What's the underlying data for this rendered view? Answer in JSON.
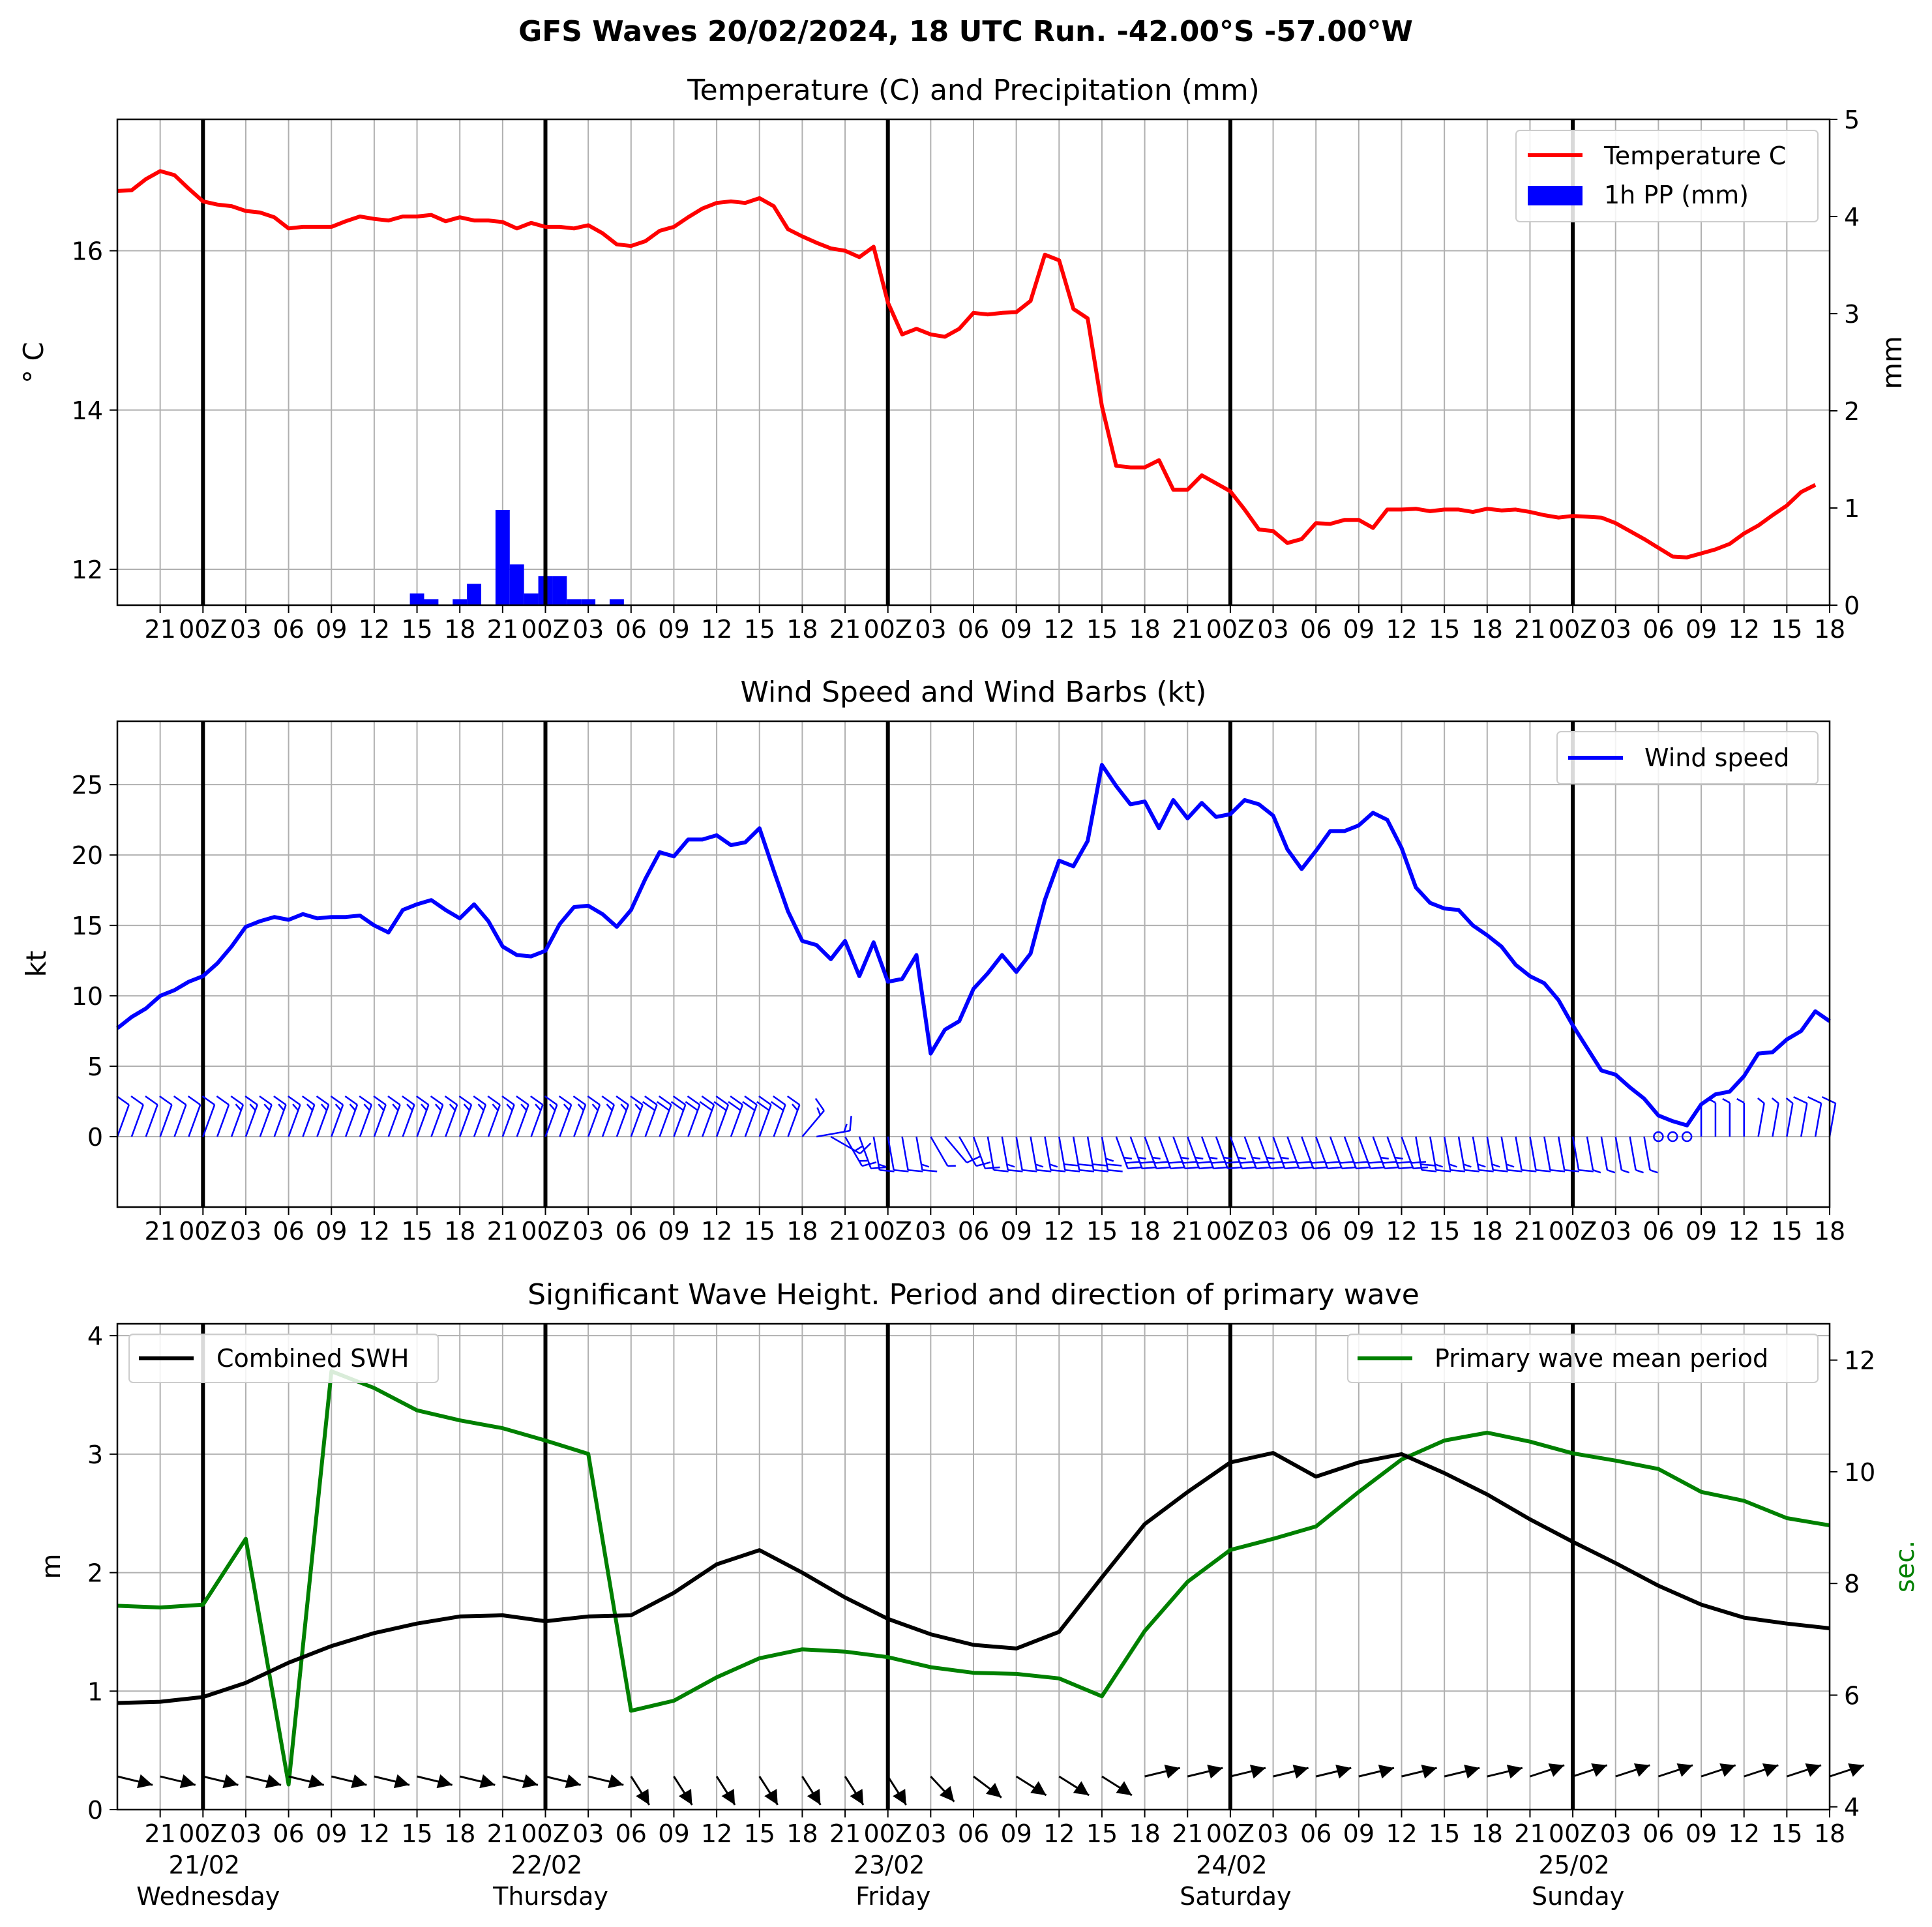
{
  "suptitle": "GFS Waves 20/02/2024, 18 UTC Run. -42.00°S -57.00°W",
  "colors": {
    "temperature": "#ff0000",
    "precip": "#0000ff",
    "wind": "#0000ff",
    "swh": "#000000",
    "period": "#008000",
    "grid": "#b0b0b0"
  },
  "xaxis": {
    "start": "2024-02-20T18:00Z",
    "end": "2024-02-25T18:00Z",
    "step_hours": 3,
    "tick_labels": [
      "21",
      "00Z",
      "03",
      "06",
      "09",
      "12",
      "15",
      "18",
      "21",
      "00Z",
      "03",
      "06",
      "09",
      "12",
      "15",
      "18",
      "21",
      "00Z",
      "03",
      "06",
      "09",
      "12",
      "15",
      "18",
      "21",
      "00Z",
      "03",
      "06",
      "09",
      "12",
      "15",
      "18",
      "21",
      "00Z",
      "03",
      "06",
      "09",
      "12",
      "15",
      "18"
    ],
    "day_dates": [
      "21/02",
      "22/02",
      "23/02",
      "24/02",
      "25/02"
    ],
    "day_names": [
      "Wednesday",
      "Thursday",
      "Friday",
      "Saturday",
      "Sunday"
    ]
  },
  "chart_data": [
    {
      "type": "line",
      "title": "Temperature (C) and Precipitation (mm)",
      "ylabel": "° C",
      "ylabel_right": "mm",
      "ylim": [
        11.55,
        17.65
      ],
      "ylim_right": [
        0,
        5
      ],
      "yticks": [
        12,
        14,
        16
      ],
      "yticks_right": [
        0,
        1,
        2,
        3,
        4,
        5
      ],
      "grid": true,
      "legend_position": "top-right",
      "series": [
        {
          "name": "Temperature C",
          "x_hours_step": 1,
          "values": [
            16.75,
            16.76,
            16.9,
            17.0,
            16.95,
            16.78,
            16.62,
            16.58,
            16.56,
            16.5,
            16.48,
            16.42,
            16.28,
            16.3,
            16.3,
            16.3,
            16.37,
            16.43,
            16.4,
            16.38,
            16.43,
            16.43,
            16.45,
            16.37,
            16.42,
            16.38,
            16.38,
            16.36,
            16.28,
            16.35,
            16.3,
            16.3,
            16.28,
            16.32,
            16.22,
            16.08,
            16.06,
            16.12,
            16.25,
            16.3,
            16.42,
            16.53,
            16.6,
            16.62,
            16.6,
            16.66,
            16.56,
            16.27,
            16.18,
            16.1,
            16.03,
            16.0,
            15.92,
            16.05,
            15.35,
            14.95,
            15.02,
            14.95,
            14.92,
            15.02,
            15.22,
            15.2,
            15.22,
            15.23,
            15.37,
            15.95,
            15.88,
            15.27,
            15.15,
            14.05,
            13.3,
            13.28,
            13.28,
            13.37,
            13.0,
            13.0,
            13.18,
            13.08,
            12.98,
            12.75,
            12.5,
            12.48,
            12.33,
            12.38,
            12.58,
            12.57,
            12.62,
            12.62,
            12.52,
            12.75,
            12.75,
            12.76,
            12.73,
            12.75,
            12.75,
            12.72,
            12.76,
            12.74,
            12.75,
            12.72,
            12.68,
            12.65,
            12.67,
            12.66,
            12.65,
            12.58,
            12.48,
            12.38,
            12.27,
            12.16,
            12.15,
            12.2,
            12.25,
            12.32,
            12.45,
            12.55,
            12.68,
            12.8,
            12.97,
            13.06
          ]
        },
        {
          "name": "1h PP (mm)",
          "type": "bar",
          "x_hours": [
            21,
            22,
            24,
            25,
            27,
            28,
            29,
            30,
            31,
            32,
            33,
            35
          ],
          "values": [
            0.12,
            0.06,
            0.06,
            0.22,
            0.98,
            0.42,
            0.12,
            0.3,
            0.3,
            0.06,
            0.06,
            0.06
          ]
        }
      ]
    },
    {
      "type": "line",
      "title": "Wind Speed and Wind Barbs (kt)",
      "ylabel": "kt",
      "ylim": [
        -5,
        29.5
      ],
      "yticks": [
        0,
        5,
        10,
        15,
        20,
        25
      ],
      "grid": true,
      "legend_position": "top-right",
      "series": [
        {
          "name": "Wind speed",
          "x_hours_step": 1,
          "values": [
            7.7,
            8.5,
            9.1,
            10.0,
            10.4,
            11.0,
            11.4,
            12.3,
            13.5,
            14.9,
            15.3,
            15.6,
            15.4,
            15.8,
            15.5,
            15.6,
            15.6,
            15.7,
            15.0,
            14.5,
            16.1,
            16.5,
            16.8,
            16.1,
            15.5,
            16.5,
            15.3,
            13.5,
            12.9,
            12.8,
            13.2,
            15.1,
            16.3,
            16.4,
            15.8,
            14.9,
            16.1,
            18.3,
            20.2,
            19.9,
            21.1,
            21.1,
            21.4,
            20.7,
            20.9,
            21.9,
            18.9,
            16.0,
            13.9,
            13.6,
            12.6,
            13.9,
            11.4,
            13.8,
            11.0,
            11.2,
            12.9,
            5.9,
            7.6,
            8.2,
            10.5,
            11.6,
            12.9,
            11.7,
            13.0,
            16.8,
            19.6,
            19.2,
            21.0,
            26.4,
            24.9,
            23.6,
            23.8,
            21.9,
            23.9,
            22.6,
            23.7,
            22.7,
            22.9,
            23.9,
            23.6,
            22.8,
            20.4,
            19.0,
            20.3,
            21.7,
            21.7,
            22.1,
            23.0,
            22.5,
            20.5,
            17.7,
            16.6,
            16.2,
            16.1,
            15.0,
            14.3,
            13.5,
            12.2,
            11.4,
            10.9,
            9.7,
            7.9,
            6.3,
            4.7,
            4.4,
            3.5,
            2.7,
            1.5,
            1.1,
            0.8,
            2.3,
            3.0,
            3.2,
            4.3,
            5.9,
            6.0,
            6.9,
            7.5,
            8.9,
            8.2
          ]
        }
      ],
      "barbs": {
        "x_hours_step": 1,
        "direction_from_deg": [
          20,
          20,
          20,
          20,
          20,
          20,
          20,
          20,
          20,
          20,
          20,
          20,
          20,
          20,
          20,
          20,
          20,
          20,
          20,
          20,
          20,
          20,
          20,
          20,
          20,
          20,
          20,
          20,
          20,
          20,
          20,
          20,
          20,
          20,
          20,
          20,
          20,
          20,
          20,
          20,
          20,
          20,
          20,
          20,
          20,
          20,
          20,
          20,
          40,
          80,
          120,
          150,
          160,
          170,
          170,
          170,
          170,
          150,
          140,
          150,
          160,
          170,
          170,
          170,
          170,
          170,
          170,
          170,
          170,
          170,
          160,
          160,
          160,
          160,
          160,
          160,
          160,
          160,
          160,
          160,
          160,
          160,
          160,
          160,
          160,
          160,
          160,
          160,
          160,
          160,
          160,
          170,
          170,
          170,
          170,
          170,
          170,
          170,
          170,
          170,
          170,
          170,
          170,
          170,
          170,
          170,
          170,
          170,
          170,
          170,
          0,
          0,
          0,
          0,
          0,
          10,
          10,
          10,
          10,
          10,
          10
        ]
      }
    },
    {
      "type": "line",
      "title": "Significant Wave Height. Period and direction of primary wave",
      "ylabel": "m",
      "ylabel_right": "sec.",
      "ylim": [
        0,
        4.1
      ],
      "ylim_right": [
        3.95,
        12.65
      ],
      "yticks": [
        0,
        1,
        2,
        3,
        4
      ],
      "yticks_right": [
        4,
        6,
        8,
        10,
        12
      ],
      "grid": true,
      "legend_position": "top-left / top-right",
      "series": [
        {
          "name": "Combined SWH",
          "axis": "left",
          "x_hours_step": 3,
          "values": [
            0.9,
            0.91,
            0.95,
            1.07,
            1.24,
            1.38,
            1.49,
            1.57,
            1.63,
            1.64,
            1.59,
            1.63,
            1.64,
            1.83,
            2.07,
            2.19,
            2.0,
            1.79,
            1.61,
            1.48,
            1.39,
            1.36,
            1.5,
            1.96,
            2.41,
            2.68,
            2.93,
            3.01,
            2.81,
            2.93,
            3.0,
            2.84,
            2.66,
            2.45,
            2.26,
            2.08,
            1.89,
            1.73,
            1.62,
            1.57,
            1.53
          ]
        },
        {
          "name": "Primary wave mean period",
          "axis": "right",
          "x_hours_step": 3,
          "values": [
            7.6,
            7.57,
            7.62,
            8.8,
            4.4,
            11.8,
            11.5,
            11.1,
            10.92,
            10.78,
            10.56,
            10.32,
            5.72,
            5.9,
            6.32,
            6.66,
            6.82,
            6.78,
            6.68,
            6.5,
            6.4,
            6.38,
            6.3,
            5.98,
            7.15,
            8.03,
            8.6,
            8.8,
            9.02,
            9.64,
            10.22,
            10.56,
            10.7,
            10.54,
            10.33,
            10.2,
            10.05,
            9.64,
            9.48,
            9.17,
            9.04
          ]
        }
      ],
      "arrows": {
        "x_hours_step": 3,
        "direction_to_deg": [
          -15,
          -15,
          -15,
          -15,
          -15,
          -15,
          -15,
          -15,
          -15,
          -15,
          -15,
          -15,
          -60,
          -60,
          -60,
          -60,
          -60,
          -60,
          -60,
          -50,
          -40,
          -35,
          -35,
          -35,
          15,
          15,
          15,
          15,
          15,
          15,
          15,
          15,
          15,
          20,
          20,
          20,
          20,
          20,
          20,
          20,
          20
        ]
      }
    }
  ]
}
